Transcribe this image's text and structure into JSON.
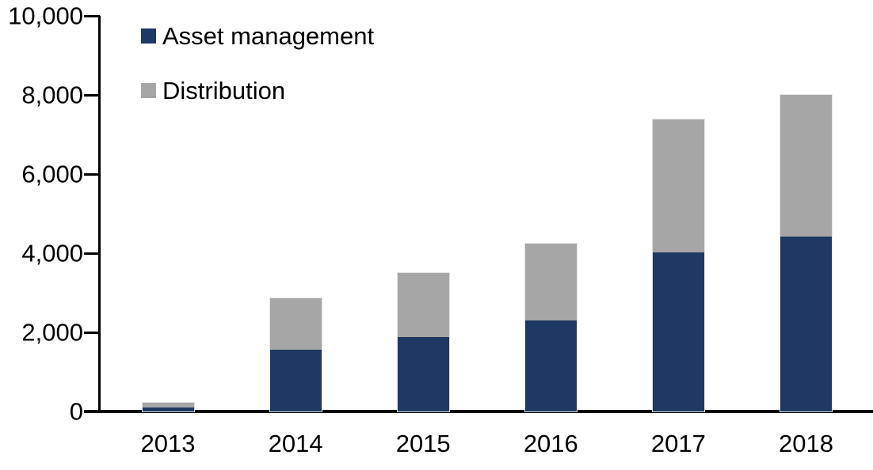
{
  "chart_data": {
    "type": "bar",
    "stacked": true,
    "title": "",
    "xlabel": "",
    "ylabel": "",
    "categories": [
      "2013",
      "2014",
      "2015",
      "2016",
      "2017",
      "2018"
    ],
    "series": [
      {
        "name": "Asset management",
        "color": "#1F3864",
        "values": [
          100,
          1560,
          1880,
          2300,
          4020,
          4420
        ]
      },
      {
        "name": "Distribution",
        "color": "#A6A6A6",
        "values": [
          120,
          1300,
          1620,
          1940,
          3370,
          3580
        ]
      }
    ],
    "totals": [
      220,
      2860,
      3500,
      4240,
      7390,
      8000
    ],
    "ylim": [
      0,
      10000
    ],
    "yticks": [
      0,
      2000,
      4000,
      6000,
      8000,
      10000
    ],
    "ytick_labels": [
      "0",
      "2,000",
      "4,000",
      "6,000",
      "8,000",
      "10,000"
    ],
    "grid": false,
    "legend_position": "top-left"
  },
  "colors": {
    "background": "#FFFFFF",
    "axis": "#000000",
    "text": "#000000",
    "asset_management": "#1F3864",
    "distribution": "#A6A6A6"
  }
}
